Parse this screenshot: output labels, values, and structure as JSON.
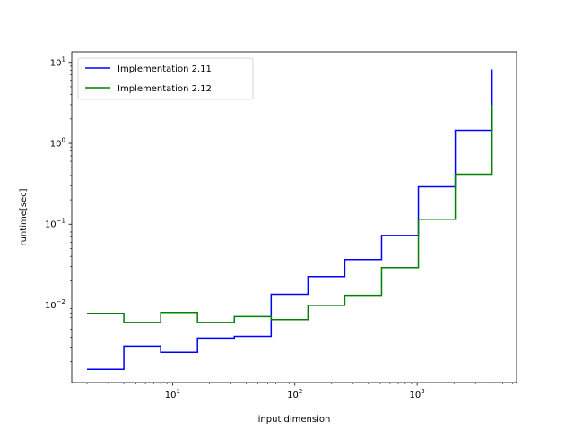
{
  "chart_data": {
    "type": "line",
    "step": "post",
    "xscale": "log",
    "yscale": "log",
    "xlabel": "input dimension",
    "ylabel": "runtime[sec]",
    "xlim": [
      1.5,
      6500
    ],
    "ylim": [
      0.0011,
      13.5
    ],
    "grid": false,
    "legend_position": "top-left",
    "x": [
      2,
      4,
      8,
      16,
      32,
      64,
      128,
      256,
      512,
      1024,
      2048,
      4096
    ],
    "series": [
      {
        "name": "Implementation 2.11",
        "color": "#0000ff",
        "values": [
          0.0016,
          0.0031,
          0.0026,
          0.0039,
          0.0041,
          0.0136,
          0.0225,
          0.0365,
          0.0725,
          0.29,
          1.45,
          8.2
        ]
      },
      {
        "name": "Implementation 2.12",
        "color": "#008000",
        "values": [
          0.0079,
          0.0061,
          0.0081,
          0.0061,
          0.0072,
          0.0066,
          0.0099,
          0.0132,
          0.029,
          0.115,
          0.415,
          3.0
        ]
      }
    ],
    "x_ticks": [
      {
        "value": 10,
        "base": "10",
        "exp": "1"
      },
      {
        "value": 100,
        "base": "10",
        "exp": "2"
      },
      {
        "value": 1000,
        "base": "10",
        "exp": "3"
      }
    ],
    "y_ticks": [
      {
        "value": 0.01,
        "base": "10",
        "exp": "−2"
      },
      {
        "value": 0.1,
        "base": "10",
        "exp": "−1"
      },
      {
        "value": 1,
        "base": "10",
        "exp": "0"
      },
      {
        "value": 10,
        "base": "10",
        "exp": "1"
      }
    ]
  }
}
